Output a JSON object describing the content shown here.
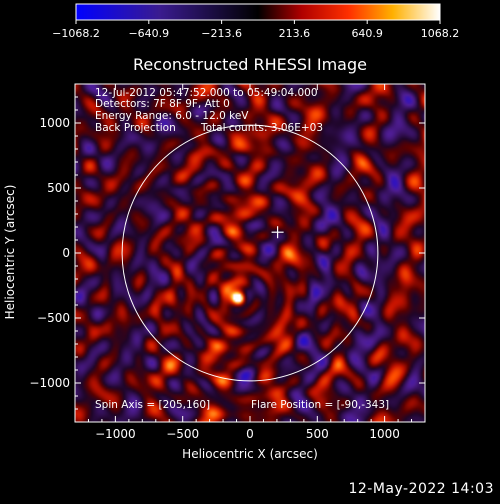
{
  "chart_data": {
    "type": "heatmap",
    "title": "Reconstructed RHESSI Image",
    "xlabel": "Heliocentric X (arcsec)",
    "ylabel": "Heliocentric Y (arcsec)",
    "xlim": [
      -1300,
      1300
    ],
    "ylim": [
      -1300,
      1300
    ],
    "x_ticks": [
      -1000,
      -500,
      0,
      500,
      1000
    ],
    "y_ticks": [
      -1000,
      -500,
      0,
      500,
      1000
    ],
    "x_tick_labels": [
      "−1000",
      "−500",
      "0",
      "500",
      "1000"
    ],
    "y_tick_labels": [
      "−1000",
      "−500",
      "0",
      "500",
      "1000"
    ],
    "colorbar": {
      "range": [
        -1068.2,
        1068.2
      ],
      "tick_values": [
        -1068.2,
        -640.9,
        -213.6,
        213.6,
        640.9,
        1068.2
      ],
      "tick_labels": [
        "−1068.2",
        "−640.9",
        "−213.6",
        "213.6",
        "640.9",
        "1068.2"
      ]
    },
    "annotations": {
      "time_range": "12-Jul-2012 05:47:52.000 to 05:49:04.000",
      "detectors": "Detectors: 7F 8F 9F, Att 0",
      "energy_range": "Energy Range: 6.0 - 12.0 keV",
      "method": "Back Projection",
      "total_counts": "Total counts: 3.06E+03",
      "spin_axis": "Spin Axis = [205,160]",
      "flare_position": "Flare Position = [-90,-343]"
    },
    "solar_disk": {
      "center": [
        0,
        0
      ],
      "radius": 950
    },
    "marker": {
      "x": 205,
      "y": 160
    },
    "peak_source": {
      "x": -90,
      "y": -343,
      "value": 1068.2
    }
  },
  "footer": {
    "date": "12-May-2022 14:03"
  },
  "colors": {
    "background": "#000000",
    "text": "#ffffff",
    "colormap": "blue-black-red-yellow-white"
  }
}
